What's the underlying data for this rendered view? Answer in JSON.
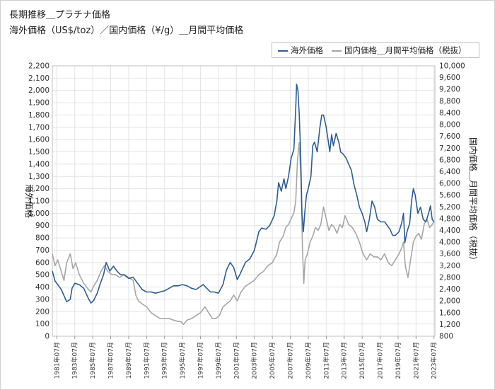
{
  "chart_data": {
    "type": "line",
    "title": "長期推移＿プラチナ価格",
    "subtitle": "海外価格（US$/toz）／国内価格（¥/g）＿月間平均価格",
    "ylabel": "海外価格",
    "y2label": "国内価格＿月間平均価格（税抜）",
    "ylim": [
      0,
      2200
    ],
    "y2lim": [
      800,
      10000
    ],
    "yticks": [
      "0",
      "100",
      "200",
      "300",
      "400",
      "500",
      "600",
      "700",
      "800",
      "900",
      "1,000",
      "1,100",
      "1,200",
      "1,300",
      "1,400",
      "1,500",
      "1,600",
      "1,700",
      "1,800",
      "1,900",
      "2,000",
      "2,100",
      "2,200"
    ],
    "y2ticks": [
      "800",
      "1,200",
      "1,600",
      "2,000",
      "2,400",
      "2,800",
      "3,200",
      "3,600",
      "4,000",
      "4,400",
      "4,800",
      "5,200",
      "5,600",
      "6,000",
      "6,400",
      "6,800",
      "7,200",
      "7,600",
      "8,000",
      "8,400",
      "8,800",
      "9,200",
      "9,600",
      "10,000"
    ],
    "xlim": [
      1981.0,
      2023.6
    ],
    "xticks": [
      "1981年07月",
      "1983年07月",
      "1985年07月",
      "1987年07月",
      "1989年07月",
      "1991年07月",
      "1993年07月",
      "1995年07月",
      "1997年07月",
      "1999年07月",
      "2001年07月",
      "2003年07月",
      "2005年07月",
      "2007年07月",
      "2009年07月",
      "2011年07月",
      "2013年07月",
      "2015年07月",
      "2017年07月",
      "2019年07月",
      "2021年07月",
      "2023年07月"
    ],
    "grid": true,
    "legend_position": "top-right",
    "series": [
      {
        "name": "海外価格",
        "axis": "left",
        "color": "#2e5d92",
        "x": [
          1981.0,
          1981.3,
          1981.6,
          1982.0,
          1982.3,
          1982.6,
          1983.0,
          1983.2,
          1983.5,
          1984.0,
          1984.5,
          1985.0,
          1985.3,
          1985.6,
          1986.0,
          1986.3,
          1986.7,
          1987.0,
          1987.4,
          1987.8,
          1988.2,
          1988.6,
          1989.0,
          1989.5,
          1990.0,
          1990.5,
          1991.0,
          1991.5,
          1992.0,
          1992.5,
          1993.0,
          1993.5,
          1994.0,
          1994.5,
          1995.0,
          1995.5,
          1996.0,
          1996.5,
          1997.0,
          1997.4,
          1997.8,
          1998.2,
          1998.6,
          1999.0,
          1999.5,
          2000.0,
          2000.4,
          2000.8,
          2001.2,
          2001.6,
          2002.0,
          2002.5,
          2003.0,
          2003.5,
          2004.0,
          2004.3,
          2004.8,
          2005.2,
          2005.7,
          2006.0,
          2006.2,
          2006.5,
          2006.8,
          2007.0,
          2007.3,
          2007.6,
          2007.9,
          2008.1,
          2008.2,
          2008.35,
          2008.5,
          2008.65,
          2008.8,
          2008.95,
          2009.1,
          2009.3,
          2009.5,
          2009.8,
          2010.0,
          2010.2,
          2010.5,
          2010.8,
          2011.0,
          2011.2,
          2011.5,
          2011.7,
          2011.9,
          2012.1,
          2012.3,
          2012.6,
          2012.9,
          2013.1,
          2013.4,
          2013.7,
          2014.0,
          2014.3,
          2014.6,
          2014.9,
          2015.2,
          2015.5,
          2015.8,
          2016.0,
          2016.3,
          2016.6,
          2016.9,
          2017.2,
          2017.6,
          2018.0,
          2018.3,
          2018.6,
          2018.9,
          2019.2,
          2019.6,
          2019.9,
          2020.1,
          2020.25,
          2020.5,
          2020.8,
          2021.0,
          2021.2,
          2021.4,
          2021.7,
          2022.0,
          2022.3,
          2022.6,
          2022.9,
          2023.1,
          2023.3,
          2023.5
        ],
        "values": [
          530,
          450,
          420,
          380,
          330,
          280,
          300,
          390,
          430,
          420,
          390,
          310,
          270,
          290,
          350,
          420,
          500,
          600,
          530,
          570,
          530,
          500,
          500,
          470,
          480,
          430,
          380,
          360,
          360,
          350,
          360,
          370,
          390,
          410,
          410,
          420,
          410,
          390,
          380,
          400,
          420,
          390,
          360,
          360,
          350,
          420,
          540,
          600,
          560,
          460,
          520,
          600,
          630,
          700,
          850,
          880,
          870,
          900,
          980,
          1100,
          1250,
          1180,
          1280,
          1200,
          1300,
          1450,
          1520,
          1850,
          2050,
          2000,
          1800,
          1500,
          1000,
          850,
          1000,
          1150,
          1200,
          1300,
          1550,
          1580,
          1500,
          1700,
          1800,
          1800,
          1700,
          1600,
          1500,
          1640,
          1550,
          1650,
          1580,
          1500,
          1480,
          1450,
          1400,
          1350,
          1230,
          1150,
          1050,
          1000,
          930,
          850,
          950,
          1100,
          1050,
          950,
          930,
          930,
          900,
          870,
          820,
          820,
          850,
          920,
          1000,
          760,
          850,
          920,
          1100,
          1200,
          1150,
          1000,
          1050,
          950,
          930,
          1000,
          1060,
          950,
          930
        ]
      },
      {
        "name": "国内価格＿月間平均価格（税抜）",
        "axis": "right",
        "color": "#a6a6a6",
        "x": [
          1981.0,
          1981.3,
          1981.6,
          1982.0,
          1982.3,
          1982.6,
          1983.0,
          1983.3,
          1983.6,
          1984.0,
          1984.5,
          1985.0,
          1985.3,
          1985.6,
          1986.0,
          1986.4,
          1986.8,
          1987.2,
          1987.6,
          1988.0,
          1988.5,
          1989.0,
          1989.5,
          1990.0,
          1990.3,
          1990.6,
          1991.0,
          1991.5,
          1992.0,
          1992.5,
          1993.0,
          1993.5,
          1994.0,
          1994.5,
          1995.0,
          1995.3,
          1995.6,
          1996.0,
          1996.5,
          1997.0,
          1997.5,
          1998.0,
          1998.4,
          1998.8,
          1999.2,
          1999.6,
          2000.0,
          2000.4,
          2000.8,
          2001.2,
          2001.6,
          2002.0,
          2002.5,
          2003.0,
          2003.5,
          2004.0,
          2004.5,
          2005.0,
          2005.5,
          2006.0,
          2006.3,
          2006.7,
          2007.0,
          2007.3,
          2007.6,
          2007.9,
          2008.1,
          2008.3,
          2008.5,
          2008.7,
          2008.85,
          2009.0,
          2009.15,
          2009.4,
          2009.7,
          2010.0,
          2010.3,
          2010.6,
          2010.9,
          2011.2,
          2011.5,
          2011.8,
          2012.1,
          2012.4,
          2012.7,
          2013.0,
          2013.3,
          2013.6,
          2014.0,
          2014.4,
          2014.8,
          2015.2,
          2015.6,
          2016.0,
          2016.4,
          2016.8,
          2017.2,
          2017.6,
          2018.0,
          2018.4,
          2018.8,
          2019.2,
          2019.6,
          2019.9,
          2020.1,
          2020.3,
          2020.6,
          2020.9,
          2021.2,
          2021.5,
          2021.8,
          2022.1,
          2022.4,
          2022.7,
          2023.0,
          2023.3,
          2023.5
        ],
        "values": [
          3600,
          3200,
          3400,
          3000,
          2700,
          3300,
          3600,
          3100,
          3300,
          2900,
          2600,
          2400,
          2300,
          2500,
          2700,
          3000,
          3200,
          3000,
          2900,
          2900,
          2800,
          2900,
          2800,
          2700,
          2200,
          2000,
          1900,
          1800,
          1600,
          1500,
          1400,
          1400,
          1400,
          1350,
          1300,
          1300,
          1200,
          1350,
          1400,
          1500,
          1600,
          1800,
          1600,
          1400,
          1400,
          1500,
          1800,
          1900,
          2000,
          2200,
          2000,
          2300,
          2500,
          2600,
          2700,
          2900,
          3000,
          3200,
          3300,
          3600,
          4000,
          4200,
          4500,
          4600,
          4800,
          5000,
          5400,
          6800,
          7400,
          6000,
          3800,
          2600,
          3400,
          3600,
          4000,
          4200,
          4500,
          4400,
          4600,
          5200,
          4800,
          4400,
          4600,
          4500,
          4300,
          4600,
          4500,
          4900,
          4600,
          4500,
          4300,
          4000,
          3600,
          3400,
          3600,
          3500,
          3500,
          3400,
          3600,
          3300,
          3200,
          3400,
          3600,
          3800,
          4000,
          3200,
          2800,
          3400,
          4000,
          4200,
          4300,
          4100,
          4600,
          4800,
          4500,
          4600,
          4700
        ]
      }
    ]
  }
}
